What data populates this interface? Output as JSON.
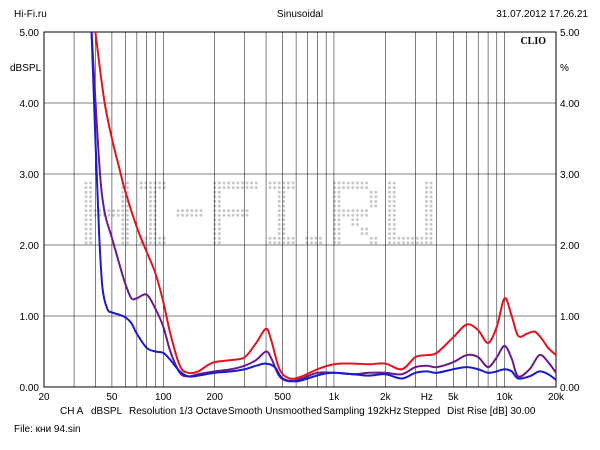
{
  "header": {
    "left": "Hi-Fi.ru",
    "center": "Sinusoidal",
    "right": "31.07.2012 17.26.21"
  },
  "footer": {
    "file": "File: кни 94.sin"
  },
  "colors": {
    "background": "#ffffff",
    "grid": "#000000",
    "watermark": "#c8c8c8"
  },
  "chart_data": {
    "type": "line",
    "brand": "CLIO",
    "watermark": "HI-FI.RU",
    "ylabel_left": "dBSPL",
    "ylabel_right": "%",
    "xscale": "log",
    "xlim": [
      20,
      20000
    ],
    "ylim": [
      0,
      5
    ],
    "x_tick_labels": [
      {
        "value": 20,
        "label": "20"
      },
      {
        "value": 50,
        "label": "50"
      },
      {
        "value": 100,
        "label": "100"
      },
      {
        "value": 200,
        "label": "200"
      },
      {
        "value": 500,
        "label": "500"
      },
      {
        "value": 1000,
        "label": "1k"
      },
      {
        "value": 2000,
        "label": "2k"
      },
      {
        "value": 3500,
        "label": "Hz"
      },
      {
        "value": 5000,
        "label": "5k"
      },
      {
        "value": 10000,
        "label": "10k"
      },
      {
        "value": 20000,
        "label": "20k"
      }
    ],
    "y_ticks_left": [
      "0.00",
      "1.00",
      "2.00",
      "3.00",
      "4.00",
      "5.00"
    ],
    "y_ticks_right": [
      "0.00",
      "1.00",
      "2.00",
      "3.00",
      "4.00",
      "5.00"
    ],
    "settings": [
      "CH A",
      "dBSPL",
      "Resolution 1/3 Octave",
      "Smooth Unsmoothed",
      "Sampling 192kHz",
      "Stepped",
      "Dist Rise [dB] 30.00"
    ],
    "series": [
      {
        "name": "red",
        "color": "#e0141e",
        "points": [
          [
            40,
            5
          ],
          [
            45,
            4.05
          ],
          [
            50,
            3.5
          ],
          [
            55,
            3.1
          ],
          [
            60,
            2.75
          ],
          [
            70,
            2.25
          ],
          [
            80,
            1.9
          ],
          [
            90,
            1.6
          ],
          [
            100,
            1.2
          ],
          [
            110,
            0.75
          ],
          [
            125,
            0.3
          ],
          [
            140,
            0.2
          ],
          [
            160,
            0.22
          ],
          [
            180,
            0.3
          ],
          [
            200,
            0.35
          ],
          [
            250,
            0.38
          ],
          [
            300,
            0.42
          ],
          [
            350,
            0.62
          ],
          [
            400,
            0.82
          ],
          [
            430,
            0.65
          ],
          [
            480,
            0.25
          ],
          [
            550,
            0.12
          ],
          [
            650,
            0.15
          ],
          [
            800,
            0.25
          ],
          [
            1000,
            0.32
          ],
          [
            1300,
            0.33
          ],
          [
            1600,
            0.32
          ],
          [
            2000,
            0.33
          ],
          [
            2500,
            0.25
          ],
          [
            3000,
            0.42
          ],
          [
            3500,
            0.45
          ],
          [
            4000,
            0.48
          ],
          [
            5000,
            0.7
          ],
          [
            6000,
            0.88
          ],
          [
            7000,
            0.8
          ],
          [
            8000,
            0.62
          ],
          [
            9000,
            0.85
          ],
          [
            10000,
            1.25
          ],
          [
            11000,
            1.0
          ],
          [
            12000,
            0.72
          ],
          [
            13500,
            0.75
          ],
          [
            15000,
            0.78
          ],
          [
            16500,
            0.68
          ],
          [
            18000,
            0.55
          ],
          [
            20000,
            0.45
          ]
        ]
      },
      {
        "name": "purple",
        "color": "#6a1a8a",
        "points": [
          [
            38,
            5
          ],
          [
            42,
            3.2
          ],
          [
            45,
            2.5
          ],
          [
            50,
            2.1
          ],
          [
            55,
            1.75
          ],
          [
            60,
            1.45
          ],
          [
            65,
            1.25
          ],
          [
            70,
            1.25
          ],
          [
            80,
            1.3
          ],
          [
            90,
            1.1
          ],
          [
            100,
            0.85
          ],
          [
            110,
            0.5
          ],
          [
            125,
            0.2
          ],
          [
            140,
            0.15
          ],
          [
            160,
            0.18
          ],
          [
            200,
            0.22
          ],
          [
            250,
            0.25
          ],
          [
            300,
            0.3
          ],
          [
            350,
            0.38
          ],
          [
            400,
            0.5
          ],
          [
            430,
            0.4
          ],
          [
            480,
            0.15
          ],
          [
            550,
            0.08
          ],
          [
            650,
            0.12
          ],
          [
            800,
            0.2
          ],
          [
            1000,
            0.2
          ],
          [
            1300,
            0.18
          ],
          [
            1600,
            0.2
          ],
          [
            2000,
            0.2
          ],
          [
            2500,
            0.18
          ],
          [
            3000,
            0.28
          ],
          [
            3500,
            0.3
          ],
          [
            4000,
            0.28
          ],
          [
            5000,
            0.35
          ],
          [
            6000,
            0.45
          ],
          [
            7000,
            0.42
          ],
          [
            8000,
            0.28
          ],
          [
            9000,
            0.42
          ],
          [
            10000,
            0.58
          ],
          [
            11000,
            0.4
          ],
          [
            12000,
            0.15
          ],
          [
            14000,
            0.25
          ],
          [
            16000,
            0.45
          ],
          [
            18000,
            0.35
          ],
          [
            20000,
            0.2
          ]
        ]
      },
      {
        "name": "blue",
        "color": "#1a1acd",
        "points": [
          [
            38,
            5
          ],
          [
            40,
            3.5
          ],
          [
            42,
            2.2
          ],
          [
            44,
            1.4
          ],
          [
            47,
            1.1
          ],
          [
            50,
            1.05
          ],
          [
            55,
            1.02
          ],
          [
            60,
            0.98
          ],
          [
            65,
            0.9
          ],
          [
            70,
            0.75
          ],
          [
            80,
            0.55
          ],
          [
            90,
            0.5
          ],
          [
            100,
            0.48
          ],
          [
            110,
            0.38
          ],
          [
            125,
            0.22
          ],
          [
            140,
            0.15
          ],
          [
            160,
            0.16
          ],
          [
            200,
            0.2
          ],
          [
            250,
            0.22
          ],
          [
            300,
            0.25
          ],
          [
            350,
            0.3
          ],
          [
            400,
            0.33
          ],
          [
            450,
            0.28
          ],
          [
            500,
            0.12
          ],
          [
            600,
            0.08
          ],
          [
            700,
            0.12
          ],
          [
            850,
            0.18
          ],
          [
            1000,
            0.2
          ],
          [
            1300,
            0.18
          ],
          [
            1600,
            0.16
          ],
          [
            2000,
            0.18
          ],
          [
            2500,
            0.12
          ],
          [
            3000,
            0.2
          ],
          [
            3500,
            0.22
          ],
          [
            4000,
            0.2
          ],
          [
            5000,
            0.25
          ],
          [
            6000,
            0.28
          ],
          [
            7000,
            0.25
          ],
          [
            8000,
            0.2
          ],
          [
            9000,
            0.22
          ],
          [
            10000,
            0.25
          ],
          [
            11000,
            0.22
          ],
          [
            12000,
            0.12
          ],
          [
            14000,
            0.15
          ],
          [
            16000,
            0.22
          ],
          [
            18000,
            0.18
          ],
          [
            20000,
            0.1
          ]
        ]
      }
    ]
  }
}
